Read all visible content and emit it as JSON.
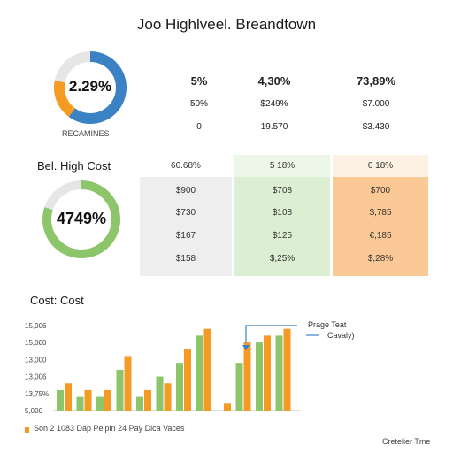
{
  "header": {
    "title": "Joo Highlveel. Breandtown"
  },
  "kpi_top": {
    "donut": {
      "label": "2.29%",
      "caption": "RECAMINES",
      "fraction": 0.6,
      "colors": [
        "#3b82c4",
        "#f59a23",
        "#e6e6e6"
      ]
    },
    "columns": [
      {
        "row1": "5%",
        "row2": "50%",
        "row3": "0"
      },
      {
        "row1": "4,30%",
        "row2": "$249%",
        "row3": "19.570"
      },
      {
        "row1": "73,89%",
        "row2": "$7.000",
        "row3": "$3.430"
      }
    ]
  },
  "cost_table": {
    "title": "Bel. High Cost",
    "donut": {
      "label": "4749%",
      "fraction": 0.8,
      "colors": [
        "#8cc56a",
        "#e6e6e6"
      ]
    },
    "headers": [
      "60.68%",
      "5 18%",
      "0 18%"
    ],
    "rows": [
      [
        "$900",
        "$708",
        "$700"
      ],
      [
        "$730",
        "$108",
        "$,785"
      ],
      [
        "$167",
        "$125",
        "€,185"
      ],
      [
        "$158",
        "$,25%",
        "$,28%"
      ]
    ],
    "column_colors": [
      "#eeeeee",
      "#dcefd2",
      "#fbc995"
    ]
  },
  "chart_data": {
    "type": "bar",
    "title": "Cost: Cost",
    "y_ticks": [
      "15,006",
      "15,000",
      "13,000",
      "13,006",
      "13,75%",
      "5,000"
    ],
    "series": [
      {
        "color": "#8cc56a",
        "values": [
          3,
          2,
          2,
          6,
          2,
          5,
          7,
          11,
          0,
          7,
          10,
          11
        ]
      },
      {
        "color": "#f59a23",
        "values": [
          4,
          3,
          3,
          8,
          3,
          4,
          9,
          12,
          1,
          10,
          11,
          12
        ]
      }
    ],
    "ylim": [
      0,
      13
    ],
    "legend": "Son 2 1083 Dap Pelpin 24 Pay Dica Vaces",
    "annotation": {
      "line1": "Prage Teat",
      "line2": "Cavaly)"
    },
    "footer": "Cretelier Tme"
  }
}
